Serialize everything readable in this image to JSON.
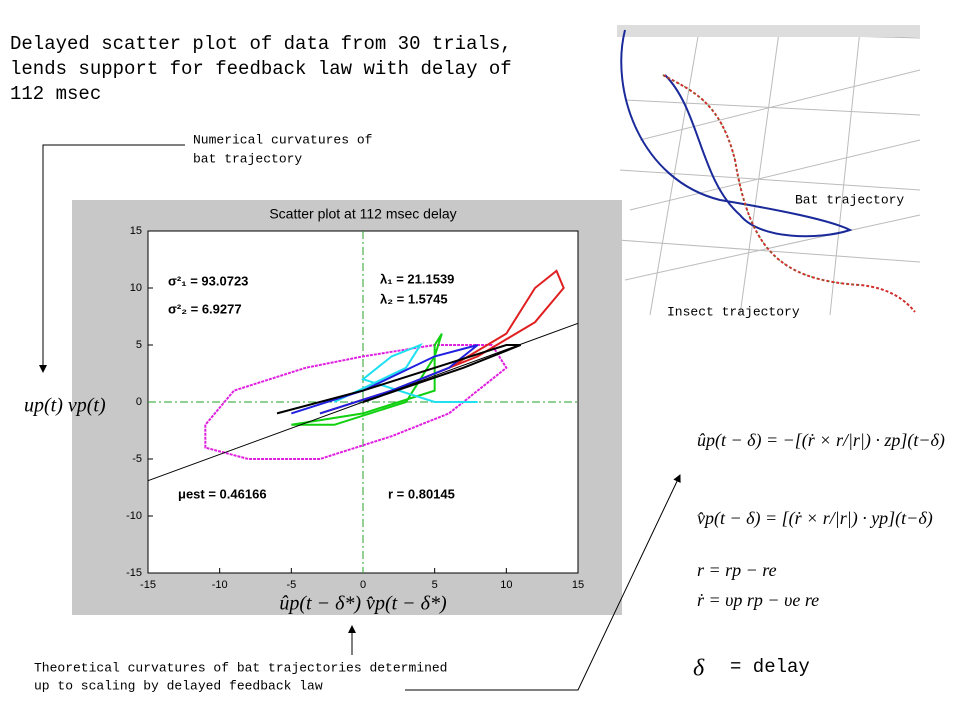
{
  "heading": [
    "Delayed scatter plot of data from 30 trials,",
    "lends support for feedback law with delay of",
    "112 msec"
  ],
  "top_note": [
    "Numerical curvatures of",
    "bat trajectory"
  ],
  "bottom_note": [
    "Theoretical  curvatures of bat trajectories determined",
    "up to scaling by delayed feedback law"
  ],
  "inset": {
    "bat_label": "Bat trajectory",
    "insect_label": "Insect trajectory"
  },
  "equations": [
    "ûp(t − δ) = −[(ṙ × r/|r|) · zp](t−δ)",
    "v̂p(t − δ) = [(ṙ × r/|r|) · yp](t−δ)",
    "r = rp − re",
    "ṙ = υp rp − υe re"
  ],
  "delta": "δ",
  "delay_label": "= delay",
  "chart_data": {
    "type": "line",
    "title": "Scatter plot at 112 msec delay",
    "xlabel": "ûp(t − δ*) v̂p(t − δ*)",
    "ylabel": "up(t) vp(t)",
    "xlim": [
      -15,
      15
    ],
    "ylim": [
      -15,
      15
    ],
    "xticks": [
      -15,
      -10,
      -5,
      0,
      5,
      10,
      15
    ],
    "yticks": [
      -15,
      -10,
      -5,
      0,
      5,
      10,
      15
    ],
    "annotations": [
      "σ²₁ = 93.0723",
      "σ²₂ = 6.9277",
      "λ₁ = 21.1539",
      "λ₂ = 1.5745",
      "μest = 0.46166",
      "r = 0.80145"
    ],
    "series": [
      {
        "color": "#e020e0",
        "x": [
          -11,
          -11,
          -8,
          -3,
          2,
          6,
          10,
          9,
          5,
          0,
          -4,
          -9,
          -11
        ],
        "y": [
          -2,
          -4,
          -5,
          -5,
          -3,
          -1,
          3,
          5,
          5,
          4,
          3,
          1,
          -2
        ]
      },
      {
        "color": "#e02020",
        "x": [
          -3,
          2,
          6,
          10,
          12,
          13.5,
          14,
          12,
          8,
          4,
          0
        ],
        "y": [
          -1,
          1,
          3,
          6,
          10,
          11.5,
          10,
          7,
          4,
          2,
          0
        ]
      },
      {
        "color": "#10d010",
        "x": [
          -5,
          0,
          5,
          5,
          5.5,
          5,
          3,
          -2,
          -5
        ],
        "y": [
          -2,
          -1,
          1,
          5,
          6,
          4,
          0,
          -2,
          -2
        ]
      },
      {
        "color": "#20e0f0",
        "x": [
          -2,
          3,
          4,
          2,
          0,
          5,
          8
        ],
        "y": [
          0,
          3,
          5,
          4,
          2,
          0,
          0
        ]
      },
      {
        "color": "#2020e0",
        "x": [
          -5,
          0,
          5,
          8,
          6,
          2,
          -3
        ],
        "y": [
          -1,
          1,
          4,
          5,
          3,
          1,
          -1
        ]
      },
      {
        "color": "#000000",
        "x": [
          -6,
          0,
          5,
          10,
          11,
          7,
          0
        ],
        "y": [
          -1,
          1,
          3,
          5,
          5,
          3,
          0
        ]
      },
      {
        "color": "#000000",
        "x": [
          -15,
          15
        ],
        "y": [
          -6.9,
          6.9
        ]
      }
    ]
  }
}
